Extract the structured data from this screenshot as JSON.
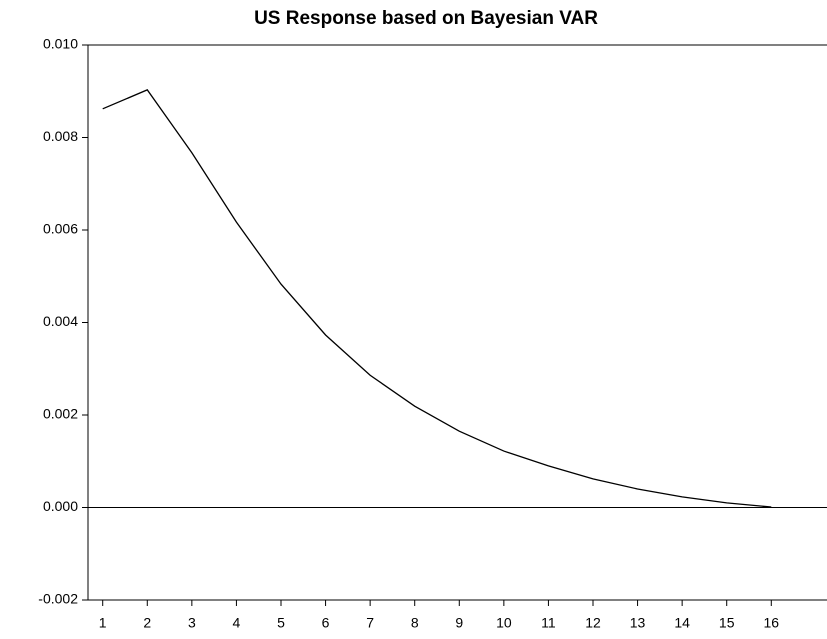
{
  "chart_data": {
    "type": "line",
    "title": "US Response based on Bayesian VAR",
    "x": [
      1,
      2,
      3,
      4,
      5,
      6,
      7,
      8,
      9,
      10,
      11,
      12,
      13,
      14,
      15,
      16
    ],
    "series": [
      {
        "color": "#000000",
        "values": [
          0.00862,
          0.00903,
          0.00767,
          0.00617,
          0.00483,
          0.00373,
          0.00286,
          0.00219,
          0.00165,
          0.00122,
          0.0009,
          0.00062,
          0.0004,
          0.00023,
          0.0001,
          1e-05
        ]
      }
    ],
    "xlim": [
      0.67,
      17.25
    ],
    "xticks": [
      1,
      2,
      3,
      4,
      5,
      6,
      7,
      8,
      9,
      10,
      11,
      12,
      13,
      14,
      15,
      16
    ],
    "ylim": [
      -0.002,
      0.01
    ],
    "yticks": [
      {
        "value": -0.002,
        "label": "-0.002"
      },
      {
        "value": 0,
        "label": "0.000"
      },
      {
        "value": 0.002,
        "label": "0.002"
      },
      {
        "value": 0.004,
        "label": "0.004"
      },
      {
        "value": 0.006,
        "label": "0.006"
      },
      {
        "value": 0.008,
        "label": "0.008"
      },
      {
        "value": 0.01,
        "label": "0.010"
      }
    ],
    "grid": false
  }
}
